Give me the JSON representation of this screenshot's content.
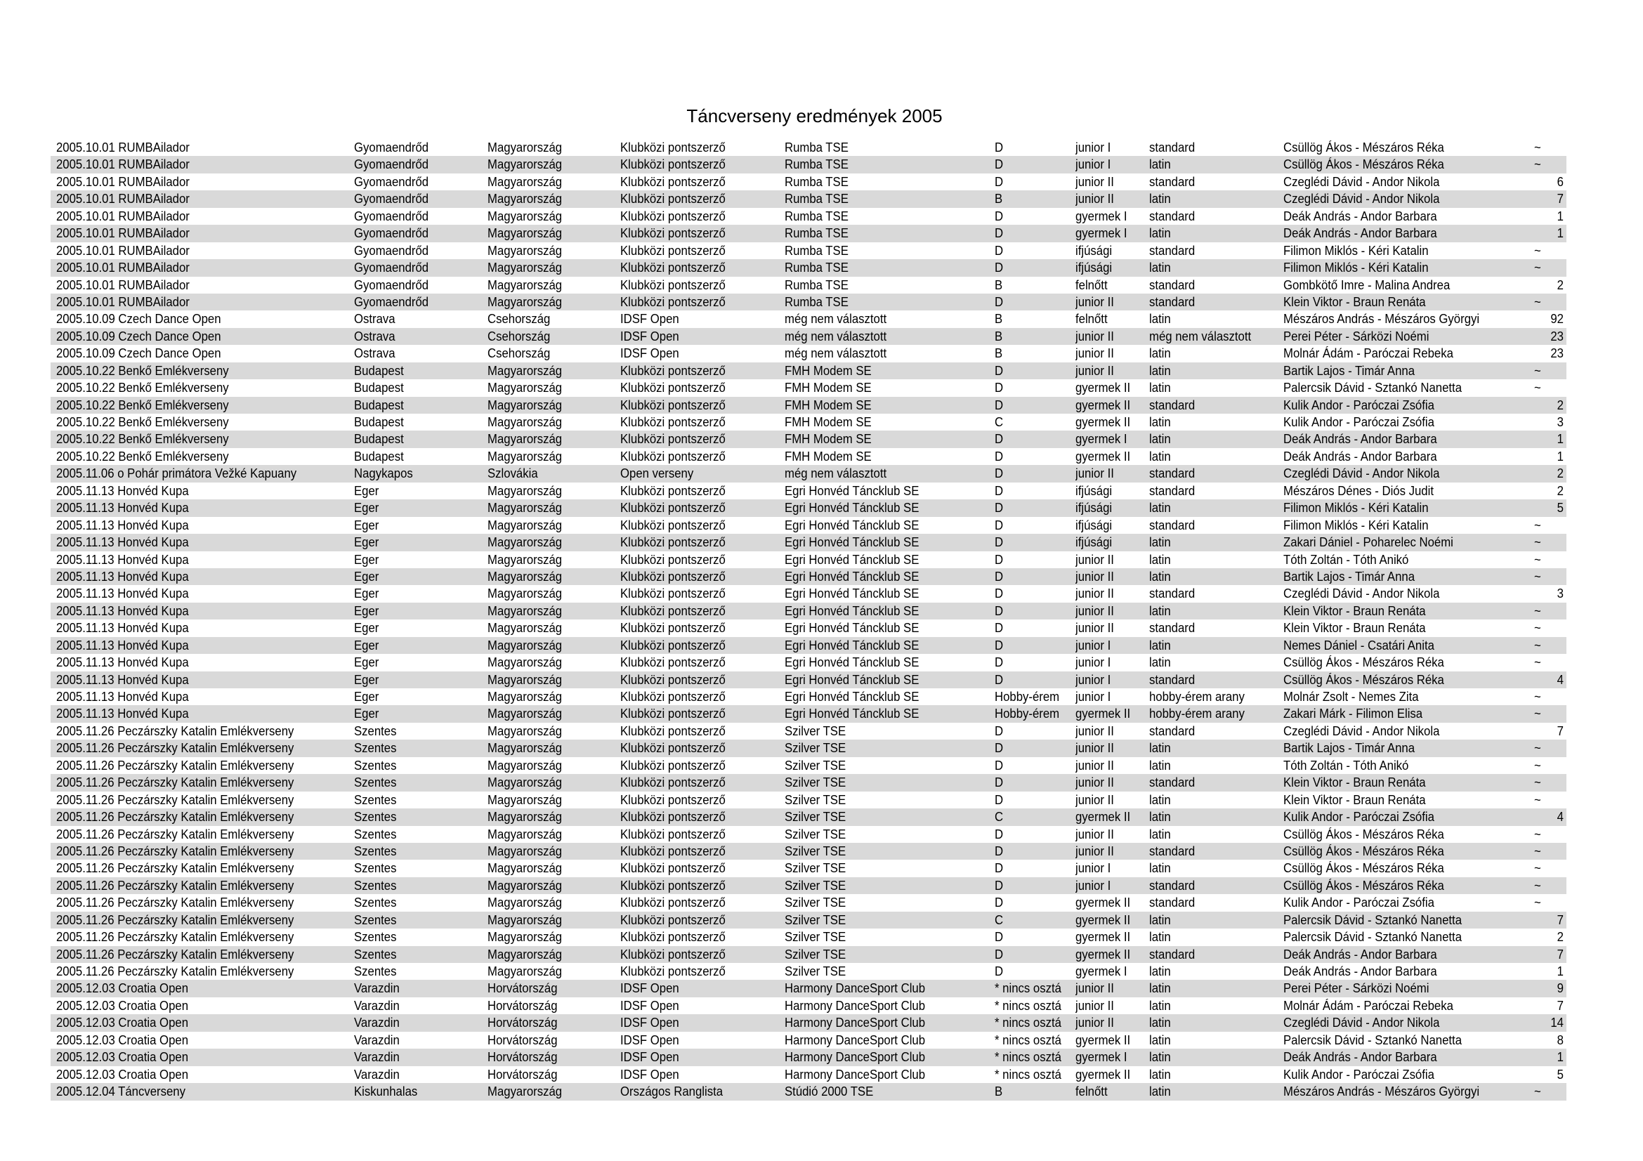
{
  "title": "Táncverseny eredmények 2005",
  "rows": [
    [
      "2005.10.01 RUMBAilador",
      "Gyomaendrőd",
      "Magyarország",
      "Klubközi pontszerző",
      "Rumba TSE",
      "D",
      "junior I",
      "standard",
      "Csüllög Ákos - Mészáros Réka",
      "~"
    ],
    [
      "2005.10.01 RUMBAilador",
      "Gyomaendrőd",
      "Magyarország",
      "Klubközi pontszerző",
      "Rumba TSE",
      "D",
      "junior I",
      "latin",
      "Csüllög Ákos - Mészáros Réka",
      "~"
    ],
    [
      "2005.10.01 RUMBAilador",
      "Gyomaendrőd",
      "Magyarország",
      "Klubközi pontszerző",
      "Rumba TSE",
      "D",
      "junior II",
      "standard",
      "Czeglédi Dávid - Andor Nikola",
      "6"
    ],
    [
      "2005.10.01 RUMBAilador",
      "Gyomaendrőd",
      "Magyarország",
      "Klubközi pontszerző",
      "Rumba TSE",
      "B",
      "junior II",
      "latin",
      "Czeglédi Dávid - Andor Nikola",
      "7"
    ],
    [
      "2005.10.01 RUMBAilador",
      "Gyomaendrőd",
      "Magyarország",
      "Klubközi pontszerző",
      "Rumba TSE",
      "D",
      "gyermek I",
      "standard",
      "Deák András - Andor Barbara",
      "1"
    ],
    [
      "2005.10.01 RUMBAilador",
      "Gyomaendrőd",
      "Magyarország",
      "Klubközi pontszerző",
      "Rumba TSE",
      "D",
      "gyermek I",
      "latin",
      "Deák András - Andor Barbara",
      "1"
    ],
    [
      "2005.10.01 RUMBAilador",
      "Gyomaendrőd",
      "Magyarország",
      "Klubközi pontszerző",
      "Rumba TSE",
      "D",
      "ifjúsági",
      "standard",
      "Filimon Miklós - Kéri Katalin",
      "~"
    ],
    [
      "2005.10.01 RUMBAilador",
      "Gyomaendrőd",
      "Magyarország",
      "Klubközi pontszerző",
      "Rumba TSE",
      "D",
      "ifjúsági",
      "latin",
      "Filimon Miklós - Kéri Katalin",
      "~"
    ],
    [
      "2005.10.01 RUMBAilador",
      "Gyomaendrőd",
      "Magyarország",
      "Klubközi pontszerző",
      "Rumba TSE",
      "B",
      "felnőtt",
      "standard",
      "Gombkötő Imre - Malina Andrea",
      "2"
    ],
    [
      "2005.10.01 RUMBAilador",
      "Gyomaendrőd",
      "Magyarország",
      "Klubközi pontszerző",
      "Rumba TSE",
      "D",
      "junior II",
      "standard",
      "Klein Viktor - Braun Renáta",
      "~"
    ],
    [
      "2005.10.09 Czech Dance Open",
      "Ostrava",
      "Csehország",
      "IDSF Open",
      "még nem választott",
      "B",
      "felnőtt",
      "latin",
      "Mészáros András - Mészáros Györgyi",
      "92"
    ],
    [
      "2005.10.09 Czech Dance Open",
      "Ostrava",
      "Csehország",
      "IDSF Open",
      "még nem választott",
      "B",
      "junior II",
      "még nem választott",
      "Perei Péter - Sárközi Noémi",
      "23"
    ],
    [
      "2005.10.09 Czech Dance Open",
      "Ostrava",
      "Csehország",
      "IDSF Open",
      "még nem választott",
      "B",
      "junior II",
      "latin",
      "Molnár Ádám - Paróczai Rebeka",
      "23"
    ],
    [
      "2005.10.22 Benkő Emlékverseny",
      "Budapest",
      "Magyarország",
      "Klubközi pontszerző",
      "FMH Modem SE",
      "D",
      "junior II",
      "latin",
      "Bartik Lajos - Timár Anna",
      "~"
    ],
    [
      "2005.10.22 Benkő Emlékverseny",
      "Budapest",
      "Magyarország",
      "Klubközi pontszerző",
      "FMH Modem SE",
      "D",
      "gyermek II",
      "latin",
      "Palercsik Dávid - Sztankó Nanetta",
      "~"
    ],
    [
      "2005.10.22 Benkő Emlékverseny",
      "Budapest",
      "Magyarország",
      "Klubközi pontszerző",
      "FMH Modem SE",
      "D",
      "gyermek II",
      "standard",
      "Kulik Andor - Paróczai Zsófia",
      "2"
    ],
    [
      "2005.10.22 Benkő Emlékverseny",
      "Budapest",
      "Magyarország",
      "Klubközi pontszerző",
      "FMH Modem SE",
      "C",
      "gyermek II",
      "latin",
      "Kulik Andor - Paróczai Zsófia",
      "3"
    ],
    [
      "2005.10.22 Benkő Emlékverseny",
      "Budapest",
      "Magyarország",
      "Klubközi pontszerző",
      "FMH Modem SE",
      "D",
      "gyermek I",
      "latin",
      "Deák András - Andor Barbara",
      "1"
    ],
    [
      "2005.10.22 Benkő Emlékverseny",
      "Budapest",
      "Magyarország",
      "Klubközi pontszerző",
      "FMH Modem SE",
      "D",
      "gyermek II",
      "latin",
      "Deák András - Andor Barbara",
      "1"
    ],
    [
      "2005.11.06 o Pohár primátora Vežké Kapuany",
      "Nagykapos",
      "Szlovákia",
      "Open verseny",
      "még nem választott",
      "D",
      "junior II",
      "standard",
      "Czeglédi Dávid - Andor Nikola",
      "2"
    ],
    [
      "2005.11.13 Honvéd Kupa",
      "Eger",
      "Magyarország",
      "Klubközi pontszerző",
      "Egri Honvéd Táncklub SE",
      "D",
      "ifjúsági",
      "standard",
      "Mészáros Dénes - Diós Judit",
      "2"
    ],
    [
      "2005.11.13 Honvéd Kupa",
      "Eger",
      "Magyarország",
      "Klubközi pontszerző",
      "Egri Honvéd Táncklub SE",
      "D",
      "ifjúsági",
      "latin",
      "Filimon Miklós - Kéri Katalin",
      "5"
    ],
    [
      "2005.11.13 Honvéd Kupa",
      "Eger",
      "Magyarország",
      "Klubközi pontszerző",
      "Egri Honvéd Táncklub SE",
      "D",
      "ifjúsági",
      "standard",
      "Filimon Miklós - Kéri Katalin",
      "~"
    ],
    [
      "2005.11.13 Honvéd Kupa",
      "Eger",
      "Magyarország",
      "Klubközi pontszerző",
      "Egri Honvéd Táncklub SE",
      "D",
      "ifjúsági",
      "latin",
      "Zakari Dániel - Poharelec Noémi",
      "~"
    ],
    [
      "2005.11.13 Honvéd Kupa",
      "Eger",
      "Magyarország",
      "Klubközi pontszerző",
      "Egri Honvéd Táncklub SE",
      "D",
      "junior II",
      "latin",
      "Tóth Zoltán - Tóth Anikó",
      "~"
    ],
    [
      "2005.11.13 Honvéd Kupa",
      "Eger",
      "Magyarország",
      "Klubközi pontszerző",
      "Egri Honvéd Táncklub SE",
      "D",
      "junior II",
      "latin",
      "Bartik Lajos - Timár Anna",
      "~"
    ],
    [
      "2005.11.13 Honvéd Kupa",
      "Eger",
      "Magyarország",
      "Klubközi pontszerző",
      "Egri Honvéd Táncklub SE",
      "D",
      "junior II",
      "standard",
      "Czeglédi Dávid - Andor Nikola",
      "3"
    ],
    [
      "2005.11.13 Honvéd Kupa",
      "Eger",
      "Magyarország",
      "Klubközi pontszerző",
      "Egri Honvéd Táncklub SE",
      "D",
      "junior II",
      "latin",
      "Klein Viktor - Braun Renáta",
      "~"
    ],
    [
      "2005.11.13 Honvéd Kupa",
      "Eger",
      "Magyarország",
      "Klubközi pontszerző",
      "Egri Honvéd Táncklub SE",
      "D",
      "junior II",
      "standard",
      "Klein Viktor - Braun Renáta",
      "~"
    ],
    [
      "2005.11.13 Honvéd Kupa",
      "Eger",
      "Magyarország",
      "Klubközi pontszerző",
      "Egri Honvéd Táncklub SE",
      "D",
      "junior I",
      "latin",
      "Nemes Dániel - Csatári Anita",
      "~"
    ],
    [
      "2005.11.13 Honvéd Kupa",
      "Eger",
      "Magyarország",
      "Klubközi pontszerző",
      "Egri Honvéd Táncklub SE",
      "D",
      "junior I",
      "latin",
      "Csüllög Ákos - Mészáros Réka",
      "~"
    ],
    [
      "2005.11.13 Honvéd Kupa",
      "Eger",
      "Magyarország",
      "Klubközi pontszerző",
      "Egri Honvéd Táncklub SE",
      "D",
      "junior I",
      "standard",
      "Csüllög Ákos - Mészáros Réka",
      "4"
    ],
    [
      "2005.11.13 Honvéd Kupa",
      "Eger",
      "Magyarország",
      "Klubközi pontszerző",
      "Egri Honvéd Táncklub SE",
      "Hobby-érem",
      "junior I",
      "hobby-érem arany",
      "Molnár Zsolt - Nemes Zita",
      "~"
    ],
    [
      "2005.11.13 Honvéd Kupa",
      "Eger",
      "Magyarország",
      "Klubközi pontszerző",
      "Egri Honvéd Táncklub SE",
      "Hobby-érem",
      "gyermek II",
      "hobby-érem arany",
      "Zakari Márk - Filimon Elisa",
      "~"
    ],
    [
      "2005.11.26 Peczárszky Katalin Emlékverseny",
      "Szentes",
      "Magyarország",
      "Klubközi pontszerző",
      "Szilver TSE",
      "D",
      "junior II",
      "standard",
      "Czeglédi Dávid - Andor Nikola",
      "7"
    ],
    [
      "2005.11.26 Peczárszky Katalin Emlékverseny",
      "Szentes",
      "Magyarország",
      "Klubközi pontszerző",
      "Szilver TSE",
      "D",
      "junior II",
      "latin",
      "Bartik Lajos - Timár Anna",
      "~"
    ],
    [
      "2005.11.26 Peczárszky Katalin Emlékverseny",
      "Szentes",
      "Magyarország",
      "Klubközi pontszerző",
      "Szilver TSE",
      "D",
      "junior II",
      "latin",
      "Tóth Zoltán - Tóth Anikó",
      "~"
    ],
    [
      "2005.11.26 Peczárszky Katalin Emlékverseny",
      "Szentes",
      "Magyarország",
      "Klubközi pontszerző",
      "Szilver TSE",
      "D",
      "junior II",
      "standard",
      "Klein Viktor - Braun Renáta",
      "~"
    ],
    [
      "2005.11.26 Peczárszky Katalin Emlékverseny",
      "Szentes",
      "Magyarország",
      "Klubközi pontszerző",
      "Szilver TSE",
      "D",
      "junior II",
      "latin",
      "Klein Viktor - Braun Renáta",
      "~"
    ],
    [
      "2005.11.26 Peczárszky Katalin Emlékverseny",
      "Szentes",
      "Magyarország",
      "Klubközi pontszerző",
      "Szilver TSE",
      "C",
      "gyermek II",
      "latin",
      "Kulik Andor - Paróczai Zsófia",
      "4"
    ],
    [
      "2005.11.26 Peczárszky Katalin Emlékverseny",
      "Szentes",
      "Magyarország",
      "Klubközi pontszerző",
      "Szilver TSE",
      "D",
      "junior II",
      "latin",
      "Csüllög Ákos - Mészáros Réka",
      "~"
    ],
    [
      "2005.11.26 Peczárszky Katalin Emlékverseny",
      "Szentes",
      "Magyarország",
      "Klubközi pontszerző",
      "Szilver TSE",
      "D",
      "junior II",
      "standard",
      "Csüllög Ákos - Mészáros Réka",
      "~"
    ],
    [
      "2005.11.26 Peczárszky Katalin Emlékverseny",
      "Szentes",
      "Magyarország",
      "Klubközi pontszerző",
      "Szilver TSE",
      "D",
      "junior I",
      "latin",
      "Csüllög Ákos - Mészáros Réka",
      "~"
    ],
    [
      "2005.11.26 Peczárszky Katalin Emlékverseny",
      "Szentes",
      "Magyarország",
      "Klubközi pontszerző",
      "Szilver TSE",
      "D",
      "junior I",
      "standard",
      "Csüllög Ákos - Mészáros Réka",
      "~"
    ],
    [
      "2005.11.26 Peczárszky Katalin Emlékverseny",
      "Szentes",
      "Magyarország",
      "Klubközi pontszerző",
      "Szilver TSE",
      "D",
      "gyermek II",
      "standard",
      "Kulik Andor - Paróczai Zsófia",
      "~"
    ],
    [
      "2005.11.26 Peczárszky Katalin Emlékverseny",
      "Szentes",
      "Magyarország",
      "Klubközi pontszerző",
      "Szilver TSE",
      "C",
      "gyermek II",
      "latin",
      "Palercsik Dávid - Sztankó Nanetta",
      "7"
    ],
    [
      "2005.11.26 Peczárszky Katalin Emlékverseny",
      "Szentes",
      "Magyarország",
      "Klubközi pontszerző",
      "Szilver TSE",
      "D",
      "gyermek II",
      "latin",
      "Palercsik Dávid - Sztankó Nanetta",
      "2"
    ],
    [
      "2005.11.26 Peczárszky Katalin Emlékverseny",
      "Szentes",
      "Magyarország",
      "Klubközi pontszerző",
      "Szilver TSE",
      "D",
      "gyermek II",
      "standard",
      "Deák András - Andor Barbara",
      "7"
    ],
    [
      "2005.11.26 Peczárszky Katalin Emlékverseny",
      "Szentes",
      "Magyarország",
      "Klubközi pontszerző",
      "Szilver TSE",
      "D",
      "gyermek I",
      "latin",
      "Deák András - Andor Barbara",
      "1"
    ],
    [
      "2005.12.03 Croatia Open",
      "Varazdin",
      "Horvátország",
      "IDSF Open",
      "Harmony DanceSport Club",
      "* nincs osztá",
      "junior II",
      "latin",
      "Perei Péter - Sárközi Noémi",
      "9"
    ],
    [
      "2005.12.03 Croatia Open",
      "Varazdin",
      "Horvátország",
      "IDSF Open",
      "Harmony DanceSport Club",
      "* nincs osztá",
      "junior II",
      "latin",
      "Molnár Ádám - Paróczai Rebeka",
      "7"
    ],
    [
      "2005.12.03 Croatia Open",
      "Varazdin",
      "Horvátország",
      "IDSF Open",
      "Harmony DanceSport Club",
      "* nincs osztá",
      "junior II",
      "latin",
      "Czeglédi Dávid - Andor Nikola",
      "14"
    ],
    [
      "2005.12.03 Croatia Open",
      "Varazdin",
      "Horvátország",
      "IDSF Open",
      "Harmony DanceSport Club",
      "* nincs osztá",
      "gyermek II",
      "latin",
      "Palercsik Dávid - Sztankó Nanetta",
      "8"
    ],
    [
      "2005.12.03 Croatia Open",
      "Varazdin",
      "Horvátország",
      "IDSF Open",
      "Harmony DanceSport Club",
      "* nincs osztá",
      "gyermek I",
      "latin",
      "Deák András - Andor Barbara",
      "1"
    ],
    [
      "2005.12.03 Croatia Open",
      "Varazdin",
      "Horvátország",
      "IDSF Open",
      "Harmony DanceSport Club",
      "* nincs osztá",
      "gyermek II",
      "latin",
      "Kulik Andor - Paróczai Zsófia",
      "5"
    ],
    [
      "2005.12.04 Táncverseny",
      "Kiskunhalas",
      "Magyarország",
      "Országos Ranglista",
      "Stúdió 2000 TSE",
      "B",
      "felnőtt",
      "latin",
      "Mészáros András - Mészáros Györgyi",
      "~"
    ]
  ],
  "colors": {
    "shaded_row": "#d9d9d9",
    "text": "#000000"
  }
}
